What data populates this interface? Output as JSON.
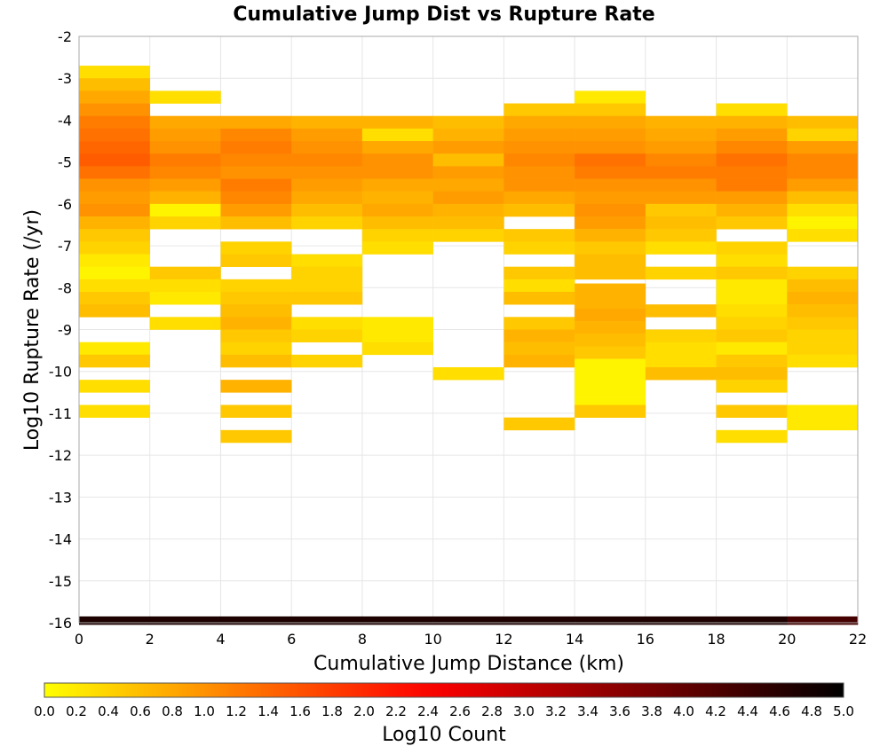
{
  "chart_data": {
    "type": "heatmap",
    "title": "Cumulative Jump Dist vs Rupture Rate",
    "xlabel": "Cumulative Jump Distance (km)",
    "ylabel": "Log10 Rupture Rate (/yr)",
    "xlim": [
      0,
      22
    ],
    "ylim": [
      -16,
      -2
    ],
    "x_ticks": [
      "0",
      "2",
      "4",
      "6",
      "8",
      "10",
      "12",
      "14",
      "16",
      "18",
      "20",
      "22"
    ],
    "y_ticks": [
      "-2",
      "-3",
      "-4",
      "-5",
      "-6",
      "-7",
      "-8",
      "-9",
      "-10",
      "-11",
      "-12",
      "-13",
      "-14",
      "-15",
      "-16"
    ],
    "x_bin_width": 2,
    "y_bin_height": 0.3,
    "grid": true,
    "colorbar": {
      "label": "Log10 Count",
      "min": 0.0,
      "max": 5.0,
      "ticks": [
        "0.0",
        "0.2",
        "0.4",
        "0.6",
        "0.8",
        "1.0",
        "1.2",
        "1.4",
        "1.6",
        "1.8",
        "2.0",
        "2.2",
        "2.4",
        "2.6",
        "2.8",
        "3.0",
        "3.2",
        "3.4",
        "3.6",
        "3.8",
        "4.0",
        "4.2",
        "4.4",
        "4.6",
        "4.8",
        "5.0"
      ],
      "colors": [
        "#ffff00",
        "#ff6600",
        "#ff0000",
        "#000000"
      ]
    },
    "columns": [
      {
        "x": 0,
        "cells": [
          [
            -2.85,
            0.3
          ],
          [
            -3.15,
            0.6
          ],
          [
            -3.45,
            0.8
          ],
          [
            -3.75,
            1.0
          ],
          [
            -4.05,
            1.2
          ],
          [
            -4.35,
            1.3
          ],
          [
            -4.65,
            1.4
          ],
          [
            -4.95,
            1.5
          ],
          [
            -5.25,
            1.3
          ],
          [
            -5.55,
            1.0
          ],
          [
            -5.85,
            0.9
          ],
          [
            -6.15,
            1.0
          ],
          [
            -6.45,
            0.7
          ],
          [
            -6.75,
            0.5
          ],
          [
            -7.05,
            0.4
          ],
          [
            -7.35,
            0.2
          ],
          [
            -7.65,
            0.1
          ],
          [
            -7.95,
            0.3
          ],
          [
            -8.25,
            0.5
          ],
          [
            -8.55,
            0.6
          ],
          [
            -9.45,
            0.2
          ],
          [
            -9.75,
            0.5
          ],
          [
            -10.35,
            0.3
          ],
          [
            -10.95,
            0.3
          ]
        ]
      },
      {
        "x": 2,
        "cells": [
          [
            -3.45,
            0.3
          ],
          [
            -4.05,
            0.8
          ],
          [
            -4.35,
            0.9
          ],
          [
            -4.65,
            1.0
          ],
          [
            -4.95,
            1.2
          ],
          [
            -5.25,
            1.1
          ],
          [
            -5.55,
            0.9
          ],
          [
            -5.85,
            0.7
          ],
          [
            -6.15,
            0.1
          ],
          [
            -6.45,
            0.4
          ],
          [
            -7.65,
            0.5
          ],
          [
            -7.95,
            0.3
          ],
          [
            -8.25,
            0.2
          ],
          [
            -8.85,
            0.3
          ]
        ]
      },
      {
        "x": 4,
        "cells": [
          [
            -4.05,
            0.8
          ],
          [
            -4.35,
            1.1
          ],
          [
            -4.65,
            1.2
          ],
          [
            -4.95,
            1.1
          ],
          [
            -5.25,
            1.0
          ],
          [
            -5.55,
            1.2
          ],
          [
            -5.85,
            1.1
          ],
          [
            -6.15,
            0.9
          ],
          [
            -6.45,
            0.6
          ],
          [
            -7.05,
            0.4
          ],
          [
            -7.35,
            0.5
          ],
          [
            -7.95,
            0.4
          ],
          [
            -8.25,
            0.5
          ],
          [
            -8.55,
            0.6
          ],
          [
            -8.85,
            0.7
          ],
          [
            -9.15,
            0.5
          ],
          [
            -9.45,
            0.4
          ],
          [
            -9.75,
            0.6
          ],
          [
            -10.35,
            0.7
          ],
          [
            -10.95,
            0.5
          ],
          [
            -11.55,
            0.5
          ]
        ]
      },
      {
        "x": 6,
        "cells": [
          [
            -4.05,
            0.7
          ],
          [
            -4.35,
            0.9
          ],
          [
            -4.65,
            1.0
          ],
          [
            -4.95,
            1.1
          ],
          [
            -5.25,
            1.0
          ],
          [
            -5.55,
            0.9
          ],
          [
            -5.85,
            0.8
          ],
          [
            -6.15,
            0.6
          ],
          [
            -6.45,
            0.4
          ],
          [
            -7.35,
            0.3
          ],
          [
            -7.65,
            0.4
          ],
          [
            -7.95,
            0.4
          ],
          [
            -8.25,
            0.5
          ],
          [
            -8.85,
            0.3
          ],
          [
            -9.15,
            0.4
          ],
          [
            -9.75,
            0.4
          ]
        ]
      },
      {
        "x": 8,
        "cells": [
          [
            -4.05,
            0.7
          ],
          [
            -4.35,
            0.3
          ],
          [
            -4.65,
            0.8
          ],
          [
            -4.95,
            1.0
          ],
          [
            -5.25,
            1.0
          ],
          [
            -5.55,
            0.8
          ],
          [
            -5.85,
            0.7
          ],
          [
            -6.15,
            0.8
          ],
          [
            -6.45,
            0.6
          ],
          [
            -6.75,
            0.4
          ],
          [
            -7.05,
            0.3
          ],
          [
            -8.85,
            0.2
          ],
          [
            -9.15,
            0.2
          ],
          [
            -9.45,
            0.3
          ]
        ]
      },
      {
        "x": 10,
        "cells": [
          [
            -4.05,
            0.6
          ],
          [
            -4.35,
            0.7
          ],
          [
            -4.65,
            0.9
          ],
          [
            -4.95,
            0.6
          ],
          [
            -5.25,
            0.9
          ],
          [
            -5.55,
            0.8
          ],
          [
            -5.85,
            0.9
          ],
          [
            -6.15,
            0.7
          ],
          [
            -6.45,
            0.6
          ],
          [
            -6.75,
            0.4
          ],
          [
            -10.05,
            0.3
          ]
        ]
      },
      {
        "x": 12,
        "cells": [
          [
            -3.75,
            0.5
          ],
          [
            -4.05,
            0.8
          ],
          [
            -4.35,
            0.9
          ],
          [
            -4.65,
            1.0
          ],
          [
            -4.95,
            1.1
          ],
          [
            -5.25,
            1.0
          ],
          [
            -5.55,
            1.0
          ],
          [
            -5.85,
            0.8
          ],
          [
            -6.15,
            0.6
          ],
          [
            -6.75,
            0.5
          ],
          [
            -7.05,
            0.4
          ],
          [
            -7.65,
            0.5
          ],
          [
            -7.95,
            0.3
          ],
          [
            -8.25,
            0.6
          ],
          [
            -8.85,
            0.5
          ],
          [
            -9.15,
            0.7
          ],
          [
            -9.45,
            0.6
          ],
          [
            -9.75,
            0.7
          ],
          [
            -11.25,
            0.5
          ]
        ]
      },
      {
        "x": 14,
        "cells": [
          [
            -3.45,
            0.2
          ],
          [
            -3.75,
            0.5
          ],
          [
            -4.05,
            0.8
          ],
          [
            -4.35,
            0.9
          ],
          [
            -4.65,
            1.0
          ],
          [
            -4.95,
            1.3
          ],
          [
            -5.25,
            1.2
          ],
          [
            -5.55,
            1.0
          ],
          [
            -5.85,
            0.9
          ],
          [
            -6.15,
            1.0
          ],
          [
            -6.45,
            0.9
          ],
          [
            -6.75,
            0.7
          ],
          [
            -7.05,
            0.5
          ],
          [
            -7.35,
            0.6
          ],
          [
            -7.65,
            0.6
          ],
          [
            -8.05,
            0.7
          ],
          [
            -8.35,
            0.7
          ],
          [
            -8.65,
            0.8
          ],
          [
            -8.95,
            0.7
          ],
          [
            -9.25,
            0.6
          ],
          [
            -9.55,
            0.5
          ],
          [
            -9.85,
            0.1
          ],
          [
            -10.15,
            0.1
          ],
          [
            -10.45,
            0.1
          ],
          [
            -10.75,
            0.1
          ],
          [
            -10.95,
            0.5
          ]
        ]
      },
      {
        "x": 16,
        "cells": [
          [
            -4.05,
            0.7
          ],
          [
            -4.35,
            0.8
          ],
          [
            -4.65,
            0.9
          ],
          [
            -4.95,
            1.1
          ],
          [
            -5.25,
            1.2
          ],
          [
            -5.55,
            1.0
          ],
          [
            -5.85,
            0.9
          ],
          [
            -6.15,
            0.5
          ],
          [
            -6.45,
            0.6
          ],
          [
            -6.75,
            0.5
          ],
          [
            -7.05,
            0.3
          ],
          [
            -7.65,
            0.4
          ],
          [
            -8.55,
            0.6
          ],
          [
            -9.15,
            0.4
          ],
          [
            -9.45,
            0.3
          ],
          [
            -9.75,
            0.3
          ],
          [
            -10.05,
            0.6
          ]
        ]
      },
      {
        "x": 18,
        "cells": [
          [
            -3.75,
            0.3
          ],
          [
            -4.05,
            0.7
          ],
          [
            -4.35,
            0.9
          ],
          [
            -4.65,
            1.1
          ],
          [
            -4.95,
            1.3
          ],
          [
            -5.25,
            1.2
          ],
          [
            -5.55,
            1.2
          ],
          [
            -5.85,
            0.9
          ],
          [
            -6.15,
            0.7
          ],
          [
            -6.45,
            0.5
          ],
          [
            -7.05,
            0.4
          ],
          [
            -7.35,
            0.3
          ],
          [
            -7.65,
            0.5
          ],
          [
            -7.95,
            0.2
          ],
          [
            -8.25,
            0.2
          ],
          [
            -8.55,
            0.3
          ],
          [
            -8.85,
            0.4
          ],
          [
            -9.15,
            0.5
          ],
          [
            -9.45,
            0.2
          ],
          [
            -9.75,
            0.5
          ],
          [
            -10.05,
            0.6
          ],
          [
            -10.35,
            0.4
          ],
          [
            -10.95,
            0.5
          ],
          [
            -11.55,
            0.3
          ]
        ]
      },
      {
        "x": 20,
        "cells": [
          [
            -4.05,
            0.6
          ],
          [
            -4.35,
            0.4
          ],
          [
            -4.65,
            0.9
          ],
          [
            -4.95,
            1.1
          ],
          [
            -5.25,
            1.1
          ],
          [
            -5.55,
            0.9
          ],
          [
            -5.85,
            0.6
          ],
          [
            -6.15,
            0.3
          ],
          [
            -6.45,
            0.1
          ],
          [
            -6.75,
            0.3
          ],
          [
            -7.65,
            0.4
          ],
          [
            -7.95,
            0.6
          ],
          [
            -8.25,
            0.7
          ],
          [
            -8.55,
            0.6
          ],
          [
            -8.85,
            0.5
          ],
          [
            -9.15,
            0.4
          ],
          [
            -9.45,
            0.4
          ],
          [
            -9.75,
            0.3
          ],
          [
            -10.95,
            0.2
          ],
          [
            -11.25,
            0.2
          ]
        ]
      }
    ],
    "bottom_row": {
      "y": -15.95,
      "values": [
        4.7,
        4.7,
        4.7,
        4.7,
        4.7,
        4.7,
        4.7,
        4.7,
        4.7,
        4.7,
        4.3
      ]
    }
  }
}
